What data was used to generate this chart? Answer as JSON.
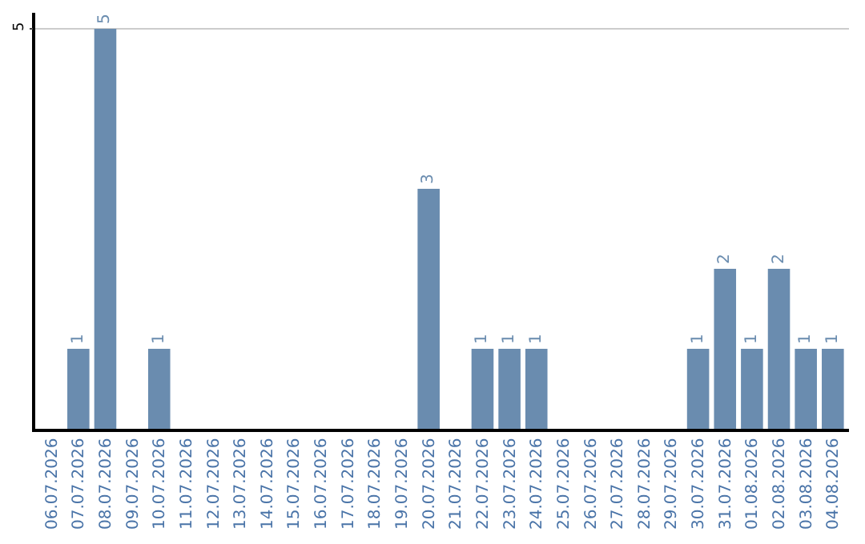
{
  "chart_data": {
    "type": "bar",
    "categories": [
      "06.07.2026",
      "07.07.2026",
      "08.07.2026",
      "09.07.2026",
      "10.07.2026",
      "11.07.2026",
      "12.07.2026",
      "13.07.2026",
      "14.07.2026",
      "15.07.2026",
      "16.07.2026",
      "17.07.2026",
      "18.07.2026",
      "19.07.2026",
      "20.07.2026",
      "21.07.2026",
      "22.07.2026",
      "23.07.2026",
      "24.07.2026",
      "25.07.2026",
      "26.07.2026",
      "27.07.2026",
      "28.07.2026",
      "29.07.2026",
      "30.07.2026",
      "31.07.2026",
      "01.08.2026",
      "02.08.2026",
      "03.08.2026",
      "04.08.2026"
    ],
    "values": [
      0,
      1,
      5,
      0,
      1,
      0,
      0,
      0,
      0,
      0,
      0,
      0,
      0,
      0,
      3,
      0,
      1,
      1,
      1,
      0,
      0,
      0,
      0,
      0,
      1,
      2,
      1,
      2,
      1,
      1
    ],
    "value_labels": [
      null,
      "1",
      "5",
      null,
      "1",
      null,
      null,
      null,
      null,
      null,
      null,
      null,
      null,
      null,
      "3",
      null,
      "1",
      "1",
      "1",
      null,
      null,
      null,
      null,
      null,
      "1",
      "2",
      "1",
      "2",
      "1",
      "1"
    ],
    "color": "#6a8caf",
    "ylim": [
      0,
      5.2
    ],
    "yticks": [
      5
    ],
    "grid": "y"
  }
}
